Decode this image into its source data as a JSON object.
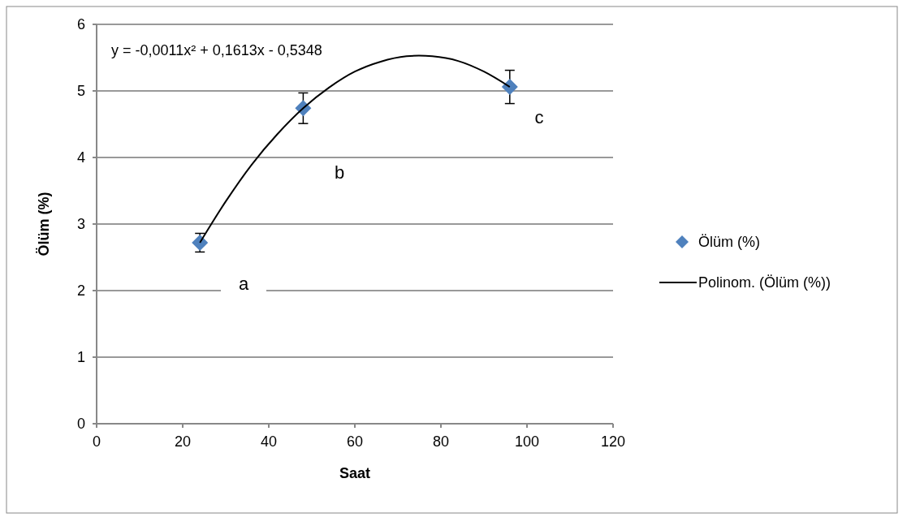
{
  "chart_data": {
    "type": "scatter",
    "xlabel": "Saat",
    "ylabel": "Ölüm (%)",
    "xlim": [
      0,
      120
    ],
    "xticks": [
      0,
      20,
      40,
      60,
      80,
      100,
      120
    ],
    "ylim": [
      0,
      6
    ],
    "yticks": [
      0,
      1,
      2,
      3,
      4,
      5,
      6
    ],
    "grid": "y",
    "legend": "right",
    "series": [
      {
        "name": "Ölüm (%)",
        "marker": "diamond",
        "color": "#4f81bd",
        "x": [
          24,
          48,
          96
        ],
        "values": [
          2.72,
          4.74,
          5.06
        ],
        "errors": [
          0.14,
          0.23,
          0.25
        ]
      },
      {
        "name": "Polinom. (Ölüm (%))",
        "type": "line",
        "color": "#000000",
        "line_style": "solid",
        "x": [
          24,
          30,
          36,
          42,
          48,
          54,
          60,
          66,
          72,
          78,
          84,
          90,
          96
        ],
        "values": [
          2.72,
          3.34,
          3.89,
          4.35,
          4.74,
          5.05,
          5.29,
          5.44,
          5.52,
          5.52,
          5.45,
          5.29,
          5.06
        ]
      }
    ],
    "annotations": [
      "y = -0,0011x² + 0,1613x - 0,5348",
      "a",
      "b",
      "c"
    ]
  }
}
